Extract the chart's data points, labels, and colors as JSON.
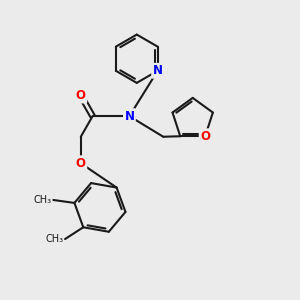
{
  "bg_color": "#ebebeb",
  "bond_color": "#1a1a1a",
  "bond_width": 1.5,
  "atom_colors": {
    "N": "#0000ff",
    "O": "#ff0000",
    "C": "#1a1a1a"
  },
  "font_size_atom": 8.5
}
